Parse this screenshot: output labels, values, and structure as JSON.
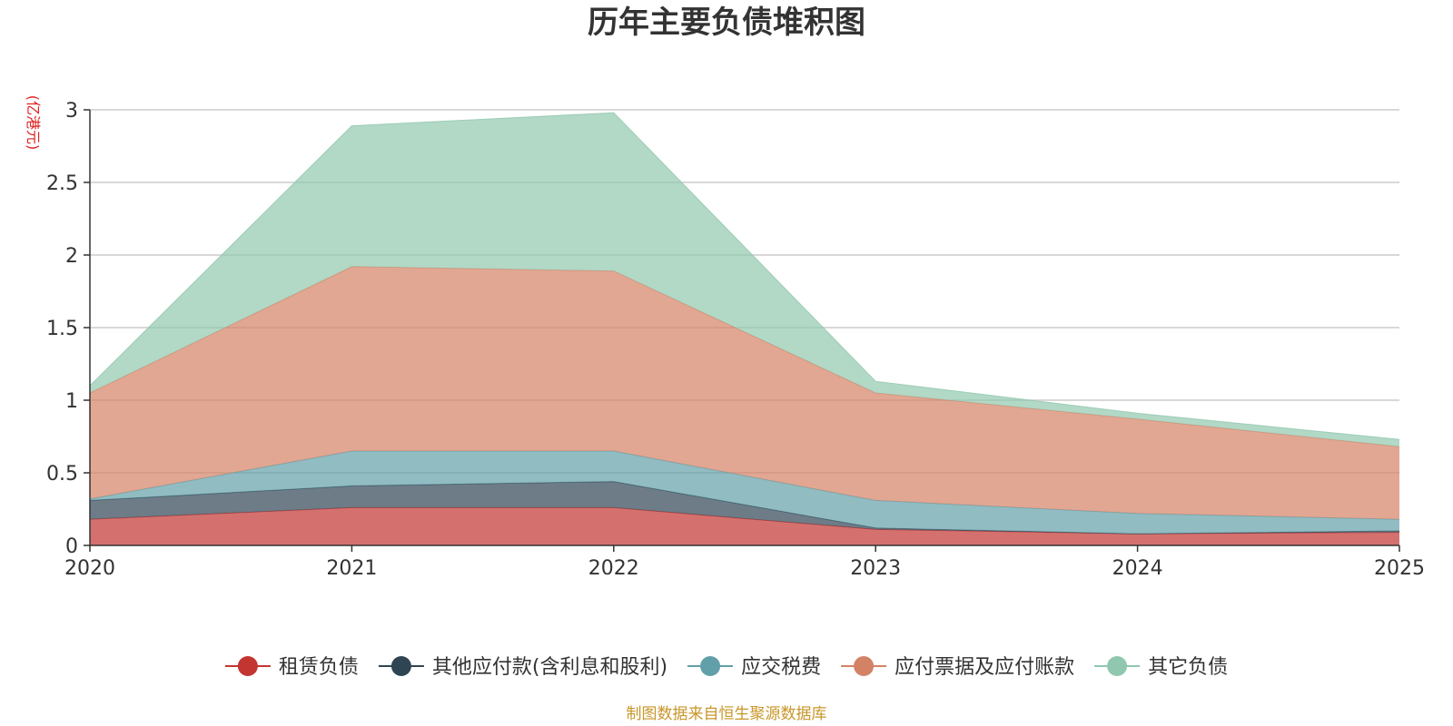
{
  "chart_data": {
    "type": "area",
    "stacked": true,
    "title": "历年主要负债堆积图",
    "unit": "(亿港元)",
    "categories": [
      "2020",
      "2021",
      "2022",
      "2023",
      "2024",
      "2025"
    ],
    "ylim": [
      0,
      3
    ],
    "yticks": [
      "0",
      "0.5",
      "1",
      "1.5",
      "2",
      "2.5",
      "3"
    ],
    "grid": true,
    "legend_position": "bottom",
    "series": [
      {
        "name": "租赁负债",
        "color": "#c23531",
        "values": [
          0.18,
          0.26,
          0.26,
          0.11,
          0.08,
          0.09
        ]
      },
      {
        "name": "其他应付款(含利息和股利)",
        "color": "#2f4554",
        "values": [
          0.13,
          0.15,
          0.18,
          0.01,
          0.0,
          0.01
        ]
      },
      {
        "name": "应交税费",
        "color": "#61a0a8",
        "values": [
          0.01,
          0.24,
          0.21,
          0.19,
          0.14,
          0.08
        ]
      },
      {
        "name": "应付票据及应付账款",
        "color": "#d48265",
        "values": [
          0.73,
          1.27,
          1.24,
          0.74,
          0.65,
          0.5
        ]
      },
      {
        "name": "其它负债",
        "color": "#91c7ae",
        "values": [
          0.05,
          0.97,
          1.09,
          0.08,
          0.04,
          0.05
        ]
      }
    ],
    "source": "制图数据来自恒生聚源数据库"
  }
}
